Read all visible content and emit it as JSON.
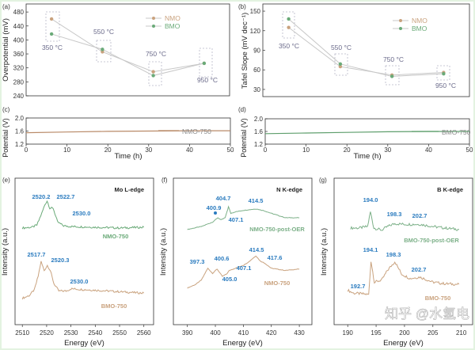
{
  "figure": {
    "watermark": "知乎 @水氢电"
  },
  "colors": {
    "nmo": "#c9a27e",
    "bmo": "#6aaa78",
    "peak_label": "#2a7bbf",
    "temp_label": "#6a6a8a",
    "box": "#b8b8c8"
  },
  "chart_data": [
    {
      "panel": "(a)",
      "type": "line",
      "categories": [
        "350 °C",
        "550 °C",
        "750 °C",
        "950 °C"
      ],
      "ylabel": "Overpotential (mV)",
      "ylim": [
        240,
        503
      ],
      "yticks": [
        240,
        280,
        320,
        360,
        400,
        440,
        480
      ],
      "legend": "top-right",
      "series": [
        {
          "name": "NMO",
          "color": "#c9a27e",
          "values": [
            460,
            366,
            309,
            333
          ]
        },
        {
          "name": "BMO",
          "color": "#6aaa78",
          "values": [
            417,
            373,
            298,
            333
          ]
        }
      ]
    },
    {
      "panel": "(b)",
      "type": "line",
      "categories": [
        "350 °C",
        "550 °C",
        "750 °C",
        "950 °C"
      ],
      "ylabel": "Tafel Slope (mV dec⁻¹)",
      "ylim": [
        19,
        161
      ],
      "yticks": [
        30,
        60,
        90,
        120,
        150
      ],
      "legend": "top-right",
      "series": [
        {
          "name": "NMO",
          "color": "#c9a27e",
          "values": [
            125,
            65,
            52,
            56
          ]
        },
        {
          "name": "BMO",
          "color": "#6aaa78",
          "values": [
            138,
            69,
            50,
            54
          ]
        }
      ]
    },
    {
      "panel": "(c)",
      "type": "line",
      "xlabel": "Time (h)",
      "ylabel": "Potential (V)",
      "xlim": [
        0,
        50
      ],
      "ylim": [
        1.2,
        2.0
      ],
      "xticks": [
        0,
        10,
        20,
        30,
        40,
        50
      ],
      "yticks": [
        "1.2",
        "1.6",
        "2.0"
      ],
      "legend": "top-right",
      "series": [
        {
          "name": "NMO-750",
          "color": "#b98a68",
          "x": [
            0,
            10,
            20,
            30,
            40,
            50
          ],
          "y": [
            1.55,
            1.57,
            1.59,
            1.6,
            1.61,
            1.61
          ]
        }
      ]
    },
    {
      "panel": "(d)",
      "type": "line",
      "xlabel": "Time (h)",
      "ylabel": "Potential (V)",
      "xlim": [
        0,
        50
      ],
      "ylim": [
        1.2,
        2.0
      ],
      "xticks": [
        0,
        10,
        20,
        30,
        40,
        50
      ],
      "yticks": [
        "1.2",
        "1.6",
        "2.0"
      ],
      "legend": "top-right",
      "series": [
        {
          "name": "BMO-750",
          "color": "#5e9e6c",
          "x": [
            0,
            10,
            20,
            30,
            40,
            50
          ],
          "y": [
            1.53,
            1.55,
            1.57,
            1.59,
            1.6,
            1.6
          ]
        }
      ]
    },
    {
      "panel": "(e)",
      "type": "line",
      "title": "Mo L-edge",
      "xlabel": "Energy (eV)",
      "ylabel": "Intensity (a.u.)",
      "xlim": [
        2507,
        2564
      ],
      "xticks": [
        2510,
        2520,
        2530,
        2540,
        2550,
        2560
      ],
      "ylim": [
        0,
        10
      ],
      "series": [
        {
          "name": "NMO-750",
          "color": "#6aaa78",
          "peak_labels": [
            "2520.2",
            "2522.7",
            "2530.0"
          ],
          "points": [
            [
              2510,
              6.6
            ],
            [
              2514,
              6.65
            ],
            [
              2516,
              6.8
            ],
            [
              2518,
              7.6
            ],
            [
              2519.3,
              8.2
            ],
            [
              2520.2,
              8.45
            ],
            [
              2521.3,
              7.95
            ],
            [
              2522.7,
              7.95
            ],
            [
              2524.5,
              7.0
            ],
            [
              2527,
              6.75
            ],
            [
              2530,
              6.7
            ],
            [
              2540,
              6.65
            ],
            [
              2550,
              6.6
            ],
            [
              2560,
              6.65
            ]
          ]
        },
        {
          "name": "BMO-750",
          "color": "#c9a27e",
          "peak_labels": [
            "2517.7",
            "2520.3",
            "2530.0"
          ],
          "points": [
            [
              2510,
              1.8
            ],
            [
              2513,
              2.0
            ],
            [
              2515,
              2.4
            ],
            [
              2516.5,
              3.3
            ],
            [
              2517.7,
              4.3
            ],
            [
              2519,
              3.7
            ],
            [
              2520.3,
              4.05
            ],
            [
              2521.5,
              3.7
            ],
            [
              2523,
              2.8
            ],
            [
              2525,
              2.3
            ],
            [
              2528,
              2.3
            ],
            [
              2530,
              2.45
            ],
            [
              2540,
              2.35
            ],
            [
              2550,
              2.25
            ],
            [
              2560,
              2.15
            ]
          ]
        }
      ]
    },
    {
      "panel": "(f)",
      "type": "line",
      "title": "N K-edge",
      "xlabel": "Energy (eV)",
      "ylabel": "Intensity (a.u.)",
      "xlim": [
        385,
        434.5
      ],
      "xticks": [
        390,
        400,
        410,
        420,
        430
      ],
      "ylim": [
        0,
        10
      ],
      "series": [
        {
          "name": "NMO-750-post-OER",
          "color": "#7cb088",
          "peak_labels": [
            "400.9",
            "404.7",
            "407.1",
            "414.5"
          ],
          "points": [
            [
              390,
              6.5
            ],
            [
              395,
              6.7
            ],
            [
              399,
              7.0
            ],
            [
              400.9,
              7.3
            ],
            [
              402,
              7.15
            ],
            [
              403.5,
              7.3
            ],
            [
              404.7,
              8.05
            ],
            [
              405.5,
              7.6
            ],
            [
              407.1,
              7.7
            ],
            [
              410,
              7.8
            ],
            [
              414.5,
              7.9
            ],
            [
              417,
              7.8
            ],
            [
              420,
              7.6
            ],
            [
              425,
              7.3
            ],
            [
              430,
              7.3
            ]
          ]
        },
        {
          "name": "NMO-750",
          "color": "#c9a27e",
          "peak_labels": [
            "397.3",
            "400.6",
            "405.0",
            "407.1",
            "414.5",
            "417.6"
          ],
          "points": [
            [
              390,
              2.5
            ],
            [
              393,
              2.75
            ],
            [
              395,
              3.05
            ],
            [
              396.3,
              3.5
            ],
            [
              397.3,
              3.85
            ],
            [
              399,
              3.5
            ],
            [
              400.6,
              3.8
            ],
            [
              402.5,
              3.3
            ],
            [
              404,
              3.45
            ],
            [
              405,
              3.7
            ],
            [
              407.1,
              3.85
            ],
            [
              410,
              4.05
            ],
            [
              412,
              4.3
            ],
            [
              414.5,
              4.7
            ],
            [
              416,
              4.35
            ],
            [
              417.6,
              4.2
            ],
            [
              420,
              3.85
            ],
            [
              425,
              3.7
            ],
            [
              430,
              3.8
            ]
          ]
        }
      ]
    },
    {
      "panel": "(g)",
      "type": "line",
      "title": "B K-edge",
      "xlabel": "Energy (eV)",
      "ylabel": "Intensity (a.u.)",
      "xlim": [
        187.6,
        212
      ],
      "xticks": [
        190,
        195,
        200,
        205,
        210
      ],
      "ylim": [
        0,
        10
      ],
      "series": [
        {
          "name": "BMO-750-post-OER",
          "color": "#7cb088",
          "peak_labels": [
            "194.0",
            "198.3",
            "202.7"
          ],
          "points": [
            [
              190.5,
              6.6
            ],
            [
              192,
              6.6
            ],
            [
              193.5,
              6.7
            ],
            [
              194,
              7.7
            ],
            [
              194.6,
              6.6
            ],
            [
              196,
              6.45
            ],
            [
              197,
              6.7
            ],
            [
              198.3,
              6.9
            ],
            [
              200,
              6.85
            ],
            [
              202.7,
              6.85
            ],
            [
              205,
              6.7
            ],
            [
              207,
              6.6
            ],
            [
              209.6,
              6.5
            ]
          ]
        },
        {
          "name": "BMO-750",
          "color": "#c9a27e",
          "peak_labels": [
            "192.7",
            "194.1",
            "198.3",
            "202.7"
          ],
          "points": [
            [
              190,
              2.35
            ],
            [
              191,
              2.15
            ],
            [
              192.7,
              2.1
            ],
            [
              193.7,
              2.05
            ],
            [
              194.1,
              4.35
            ],
            [
              194.7,
              2.9
            ],
            [
              196,
              3.05
            ],
            [
              197,
              3.7
            ],
            [
              198.3,
              4.3
            ],
            [
              199.5,
              3.45
            ],
            [
              201,
              3.15
            ],
            [
              202.7,
              3.25
            ],
            [
              205,
              2.9
            ],
            [
              207,
              2.8
            ],
            [
              209.6,
              2.75
            ]
          ]
        }
      ]
    }
  ]
}
